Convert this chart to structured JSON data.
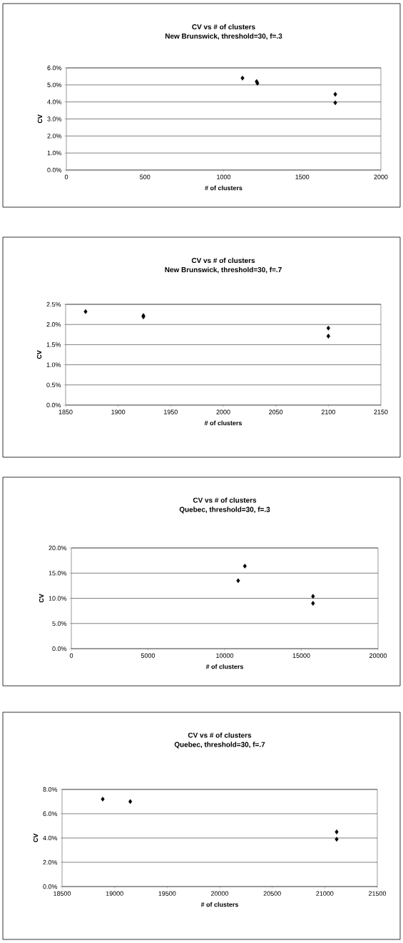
{
  "chart_data": [
    {
      "type": "scatter",
      "title": "CV vs # of clusters",
      "subtitle": "New Brunswick, threshold=30, f=.3",
      "xlabel": "# of clusters",
      "ylabel": "CV",
      "series": [
        {
          "color": "#000000",
          "x": [
            1120,
            1210,
            1215,
            1710,
            1710
          ],
          "values": [
            5.4,
            5.2,
            5.1,
            4.45,
            3.95
          ]
        }
      ],
      "xlim": [
        0,
        2000
      ],
      "xticks": [
        0,
        500,
        1000,
        1500,
        2000
      ],
      "ylim": [
        0,
        6
      ],
      "yticks": [
        {
          "value": 0,
          "label": "0.0%"
        },
        {
          "value": 1,
          "label": "1.0%"
        },
        {
          "value": 2,
          "label": "2.0%"
        },
        {
          "value": 3,
          "label": "3.0%"
        },
        {
          "value": 4,
          "label": "4.0%"
        },
        {
          "value": 5,
          "label": "5.0%"
        },
        {
          "value": 6,
          "label": "6.0%"
        }
      ],
      "grid": "y",
      "marker": "diamond"
    },
    {
      "type": "scatter",
      "title": "CV vs # of clusters",
      "subtitle": "New Brunswick, threshold=30, f=.7",
      "xlabel": "# of clusters",
      "ylabel": "CV",
      "series": [
        {
          "color": "#000000",
          "x": [
            1869,
            1924,
            1924,
            2100,
            2100
          ],
          "values": [
            2.32,
            2.22,
            2.19,
            1.91,
            1.71
          ]
        }
      ],
      "xlim": [
        1850,
        2150
      ],
      "xticks": [
        1850,
        1900,
        1950,
        2000,
        2050,
        2100,
        2150
      ],
      "ylim": [
        0,
        2.5
      ],
      "yticks": [
        {
          "value": 0,
          "label": "0.0%"
        },
        {
          "value": 0.5,
          "label": "0.5%"
        },
        {
          "value": 1,
          "label": "1.0%"
        },
        {
          "value": 1.5,
          "label": "1.5%"
        },
        {
          "value": 2,
          "label": "2.0%"
        },
        {
          "value": 2.5,
          "label": "2.5%"
        }
      ],
      "grid": "y",
      "marker": "diamond"
    },
    {
      "type": "scatter",
      "title": "CV vs # of clusters",
      "subtitle": "Quebec, threshold=30, f=.3",
      "xlabel": "# of clusters",
      "ylabel": "CV",
      "series": [
        {
          "color": "#000000",
          "x": [
            10880,
            11315,
            15760,
            15760
          ],
          "values": [
            13.5,
            16.4,
            10.4,
            9.0
          ]
        }
      ],
      "xlim": [
        0,
        20000
      ],
      "xticks": [
        0,
        5000,
        10000,
        15000,
        20000
      ],
      "ylim": [
        0,
        20
      ],
      "yticks": [
        {
          "value": 0,
          "label": "0.0%"
        },
        {
          "value": 5,
          "label": "5.0%"
        },
        {
          "value": 10,
          "label": "10.0%"
        },
        {
          "value": 15,
          "label": "15.0%"
        },
        {
          "value": 20,
          "label": "20.0%"
        }
      ],
      "grid": "y",
      "marker": "diamond"
    },
    {
      "type": "scatter",
      "title": "CV vs # of clusters",
      "subtitle": "Quebec, threshold=30, f=.7",
      "xlabel": "# of clusters",
      "ylabel": "CV",
      "series": [
        {
          "color": "#000000",
          "x": [
            18887,
            19149,
            21113,
            21113
          ],
          "values": [
            7.2,
            7.0,
            4.5,
            3.9
          ]
        }
      ],
      "xlim": [
        18500,
        21500
      ],
      "xticks": [
        18500,
        19000,
        19500,
        20000,
        20500,
        21000,
        21500
      ],
      "ylim": [
        0,
        8
      ],
      "yticks": [
        {
          "value": 0,
          "label": "0.0%"
        },
        {
          "value": 2,
          "label": "2.0%"
        },
        {
          "value": 4,
          "label": "4.0%"
        },
        {
          "value": 6,
          "label": "6.0%"
        },
        {
          "value": 8,
          "label": "8.0%"
        }
      ],
      "grid": "y",
      "marker": "diamond"
    }
  ]
}
